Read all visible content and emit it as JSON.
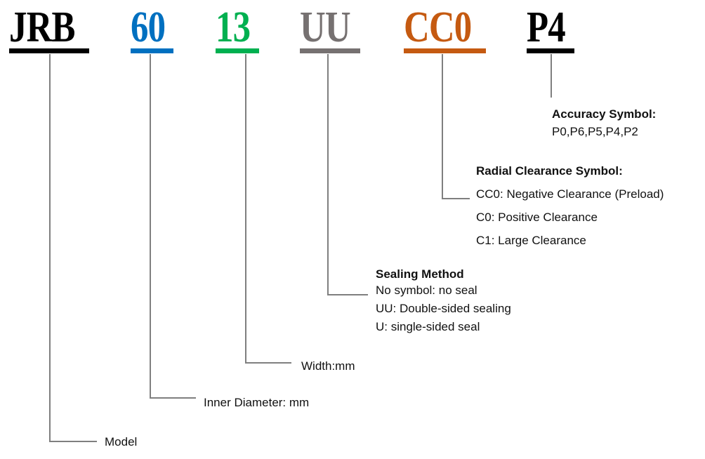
{
  "codes": [
    {
      "text": "JRB",
      "color": "#000000"
    },
    {
      "text": "60",
      "color": "#0070c0"
    },
    {
      "text": "13",
      "color": "#00b050"
    },
    {
      "text": "UU",
      "color": "#767171"
    },
    {
      "text": "CC0",
      "color": "#c55a11"
    },
    {
      "text": "P4",
      "color": "#000000"
    }
  ],
  "labels": {
    "model": "Model",
    "inner_diameter": "Inner Diameter: mm",
    "width": "Width:mm",
    "sealing": {
      "title": "Sealing Method",
      "items": [
        "No symbol: no seal",
        "UU: Double-sided sealing",
        "U: single-sided seal"
      ]
    },
    "clearance": {
      "title": "Radial Clearance Symbol:",
      "items": [
        "CC0: Negative Clearance (Preload)",
        "C0: Positive Clearance",
        "C1: Large Clearance"
      ]
    },
    "accuracy": {
      "title": "Accuracy Symbol:",
      "items": [
        "P0,P6,P5,P4,P2"
      ]
    }
  }
}
